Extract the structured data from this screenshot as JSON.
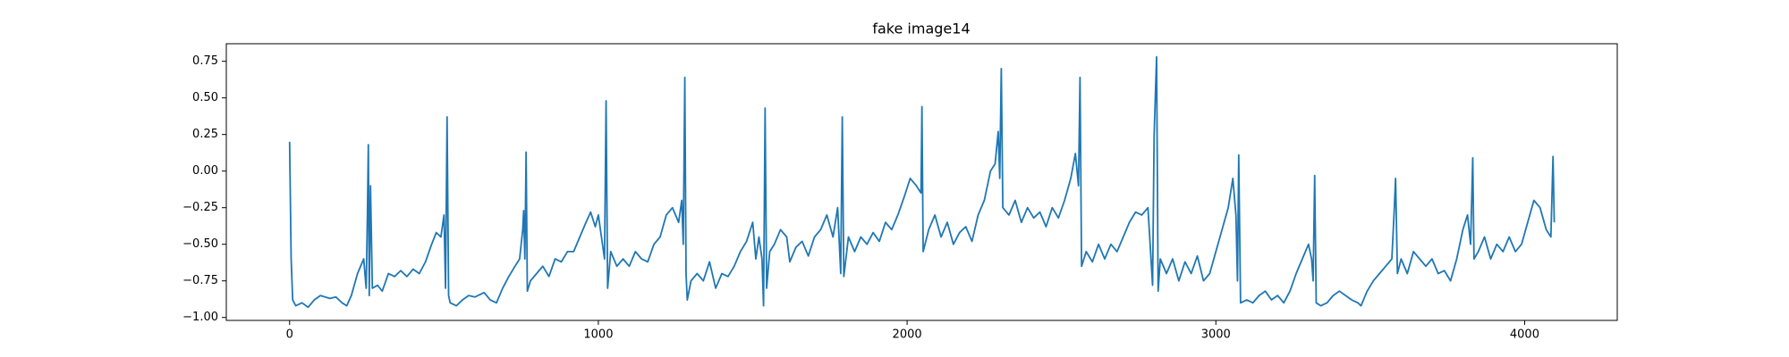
{
  "chart_data": {
    "type": "line",
    "title": "fake image14",
    "x": [
      0,
      5,
      10,
      20,
      40,
      60,
      80,
      100,
      130,
      150,
      170,
      185,
      200,
      220,
      240,
      248,
      252,
      255,
      258,
      262,
      268,
      285,
      300,
      320,
      340,
      360,
      380,
      400,
      420,
      440,
      460,
      475,
      490,
      500,
      505,
      510,
      515,
      520,
      540,
      560,
      580,
      600,
      630,
      650,
      670,
      690,
      710,
      730,
      745,
      755,
      758,
      762,
      766,
      770,
      780,
      800,
      820,
      840,
      860,
      880,
      900,
      920,
      940,
      960,
      975,
      990,
      1000,
      1010,
      1020,
      1025,
      1030,
      1040,
      1060,
      1080,
      1100,
      1120,
      1140,
      1160,
      1180,
      1200,
      1220,
      1240,
      1260,
      1270,
      1275,
      1280,
      1284,
      1288,
      1300,
      1320,
      1340,
      1360,
      1380,
      1400,
      1420,
      1440,
      1460,
      1480,
      1500,
      1510,
      1520,
      1530,
      1535,
      1540,
      1545,
      1555,
      1570,
      1590,
      1610,
      1620,
      1640,
      1660,
      1680,
      1700,
      1720,
      1740,
      1760,
      1775,
      1785,
      1790,
      1795,
      1810,
      1830,
      1850,
      1870,
      1890,
      1910,
      1930,
      1950,
      1970,
      1990,
      2010,
      2030,
      2045,
      2048,
      2052,
      2070,
      2090,
      2110,
      2130,
      2150,
      2170,
      2190,
      2210,
      2230,
      2250,
      2270,
      2285,
      2295,
      2300,
      2305,
      2310,
      2330,
      2350,
      2370,
      2390,
      2410,
      2430,
      2450,
      2470,
      2490,
      2510,
      2530,
      2545,
      2555,
      2560,
      2565,
      2580,
      2600,
      2620,
      2640,
      2660,
      2680,
      2700,
      2720,
      2740,
      2760,
      2780,
      2795,
      2800,
      2808,
      2813,
      2820,
      2840,
      2860,
      2880,
      2900,
      2920,
      2940,
      2960,
      2980,
      3000,
      3020,
      3040,
      3055,
      3065,
      3070,
      3074,
      3080,
      3100,
      3120,
      3140,
      3160,
      3180,
      3200,
      3220,
      3240,
      3260,
      3280,
      3300,
      3310,
      3315,
      3320,
      3325,
      3340,
      3360,
      3380,
      3400,
      3420,
      3440,
      3460,
      3470,
      3490,
      3510,
      3530,
      3550,
      3570,
      3578,
      3582,
      3588,
      3600,
      3620,
      3640,
      3660,
      3680,
      3700,
      3720,
      3740,
      3760,
      3780,
      3800,
      3815,
      3825,
      3832,
      3836,
      3850,
      3870,
      3890,
      3910,
      3930,
      3950,
      3970,
      3990,
      4010,
      4030,
      4050,
      4070,
      4085,
      4092,
      4096
    ],
    "values": [
      0.2,
      -0.6,
      -0.88,
      -0.92,
      -0.9,
      -0.93,
      -0.88,
      -0.85,
      -0.87,
      -0.86,
      -0.9,
      -0.92,
      -0.85,
      -0.7,
      -0.6,
      -0.8,
      -0.3,
      0.18,
      -0.85,
      -0.1,
      -0.8,
      -0.78,
      -0.82,
      -0.7,
      -0.72,
      -0.68,
      -0.72,
      -0.67,
      -0.7,
      -0.62,
      -0.5,
      -0.42,
      -0.45,
      -0.3,
      -0.8,
      0.37,
      -0.85,
      -0.9,
      -0.92,
      -0.88,
      -0.85,
      -0.86,
      -0.83,
      -0.88,
      -0.9,
      -0.8,
      -0.72,
      -0.65,
      -0.6,
      -0.4,
      -0.27,
      -0.6,
      0.13,
      -0.82,
      -0.75,
      -0.7,
      -0.65,
      -0.72,
      -0.6,
      -0.62,
      -0.55,
      -0.55,
      -0.45,
      -0.35,
      -0.28,
      -0.38,
      -0.3,
      -0.45,
      -0.6,
      0.48,
      -0.8,
      -0.55,
      -0.65,
      -0.6,
      -0.65,
      -0.55,
      -0.6,
      -0.62,
      -0.5,
      -0.45,
      -0.3,
      -0.25,
      -0.35,
      -0.2,
      -0.5,
      0.64,
      -0.7,
      -0.88,
      -0.75,
      -0.7,
      -0.75,
      -0.62,
      -0.8,
      -0.7,
      -0.72,
      -0.65,
      -0.55,
      -0.48,
      -0.35,
      -0.6,
      -0.45,
      -0.6,
      -0.92,
      0.43,
      -0.8,
      -0.55,
      -0.5,
      -0.4,
      -0.45,
      -0.62,
      -0.52,
      -0.48,
      -0.58,
      -0.45,
      -0.4,
      -0.3,
      -0.45,
      -0.25,
      -0.7,
      0.37,
      -0.72,
      -0.45,
      -0.55,
      -0.45,
      -0.5,
      -0.42,
      -0.48,
      -0.35,
      -0.4,
      -0.3,
      -0.18,
      -0.05,
      -0.1,
      -0.15,
      0.44,
      -0.55,
      -0.4,
      -0.3,
      -0.45,
      -0.35,
      -0.5,
      -0.42,
      -0.38,
      -0.48,
      -0.3,
      -0.2,
      0.0,
      0.05,
      0.27,
      -0.05,
      0.7,
      -0.25,
      -0.3,
      -0.2,
      -0.35,
      -0.25,
      -0.32,
      -0.28,
      -0.38,
      -0.25,
      -0.32,
      -0.2,
      -0.05,
      0.12,
      -0.1,
      0.64,
      -0.65,
      -0.55,
      -0.62,
      -0.5,
      -0.6,
      -0.5,
      -0.55,
      -0.45,
      -0.35,
      -0.28,
      -0.3,
      -0.25,
      -0.78,
      0.24,
      0.78,
      -0.82,
      -0.6,
      -0.7,
      -0.6,
      -0.75,
      -0.62,
      -0.7,
      -0.58,
      -0.75,
      -0.7,
      -0.55,
      -0.4,
      -0.25,
      -0.05,
      -0.3,
      -0.75,
      0.11,
      -0.9,
      -0.88,
      -0.9,
      -0.85,
      -0.82,
      -0.88,
      -0.85,
      -0.9,
      -0.82,
      -0.7,
      -0.6,
      -0.5,
      -0.6,
      -0.75,
      -0.03,
      -0.9,
      -0.92,
      -0.9,
      -0.85,
      -0.82,
      -0.85,
      -0.88,
      -0.9,
      -0.92,
      -0.82,
      -0.75,
      -0.7,
      -0.65,
      -0.6,
      -0.25,
      -0.05,
      -0.7,
      -0.6,
      -0.7,
      -0.55,
      -0.6,
      -0.65,
      -0.6,
      -0.7,
      -0.68,
      -0.75,
      -0.6,
      -0.4,
      -0.3,
      -0.5,
      0.09,
      -0.6,
      -0.55,
      -0.45,
      -0.6,
      -0.5,
      -0.55,
      -0.45,
      -0.55,
      -0.5,
      -0.35,
      -0.2,
      -0.25,
      -0.4,
      -0.45,
      0.1,
      -0.35
    ],
    "color": "#1f77b4",
    "xlim": [
      -205,
      4300
    ],
    "xticks": [
      0,
      1000,
      2000,
      3000,
      4000
    ],
    "ylim": [
      -1.02,
      0.87
    ],
    "yticks": [
      {
        "value": -1.0,
        "label": "−1.00"
      },
      {
        "value": -0.75,
        "label": "−0.75"
      },
      {
        "value": -0.5,
        "label": "−0.50"
      },
      {
        "value": -0.25,
        "label": "−0.25"
      },
      {
        "value": 0.0,
        "label": "0.00"
      },
      {
        "value": 0.25,
        "label": "0.25"
      },
      {
        "value": 0.5,
        "label": "0.50"
      },
      {
        "value": 0.75,
        "label": "0.75"
      }
    ],
    "grid": false
  }
}
